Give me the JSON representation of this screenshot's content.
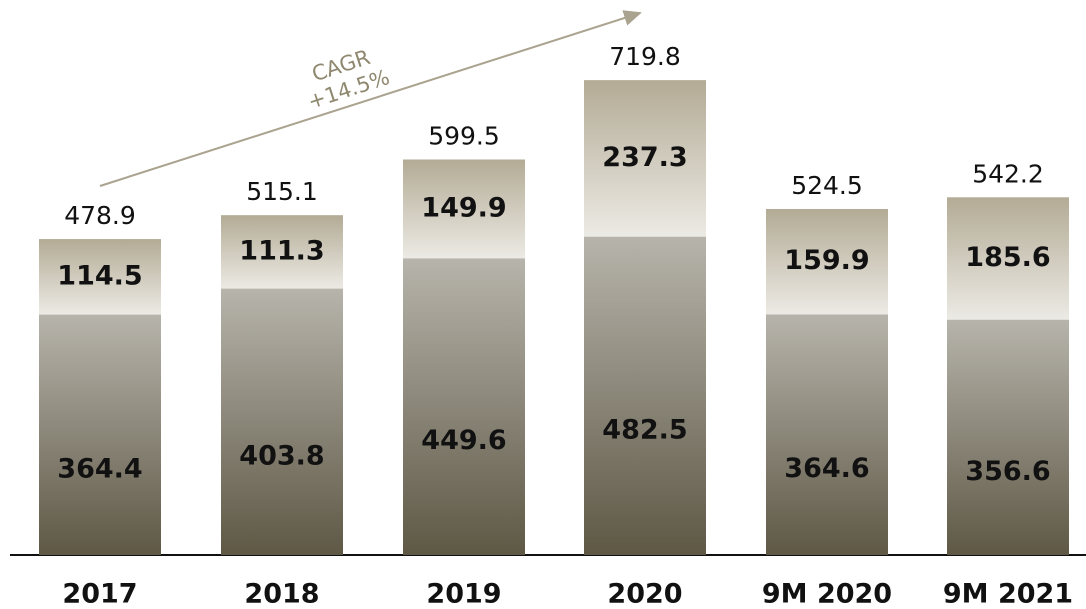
{
  "chart_data": {
    "type": "stacked-bar",
    "categories": [
      "2017",
      "2018",
      "2019",
      "2020",
      "9M 2020",
      "9M 2021"
    ],
    "series": [
      {
        "color": "#5e5845",
        "values": [
          364.4,
          403.8,
          449.6,
          482.5,
          364.6,
          356.6
        ]
      },
      {
        "color": "#b3ab95",
        "values": [
          114.5,
          111.3,
          149.9,
          237.3,
          159.9,
          185.6
        ]
      }
    ],
    "totals": [
      "478.9",
      "515.1",
      "599.5",
      "719.8",
      "524.5",
      "542.2"
    ],
    "annotations": [
      "CAGR",
      "+14.5%"
    ],
    "ylim": [
      0,
      720
    ]
  }
}
